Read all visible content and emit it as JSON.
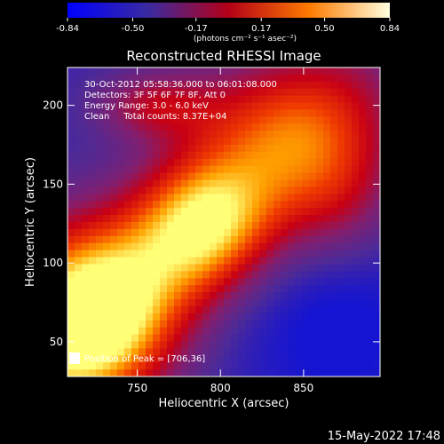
{
  "chart_data": {
    "type": "heatmap",
    "title": "Reconstructed RHESSI Image",
    "xlabel": "Heliocentric X (arcsec)",
    "ylabel": "Heliocentric Y (arcsec)",
    "x_ticks": [
      750,
      800,
      850
    ],
    "y_ticks": [
      50,
      100,
      150,
      200
    ],
    "xlim": [
      708,
      896
    ],
    "ylim": [
      28,
      224
    ],
    "colorbar": {
      "ticks": [
        "-0.84",
        "-0.50",
        "-0.17",
        "0.17",
        "0.50",
        "0.84"
      ],
      "range": [
        -0.84,
        0.84
      ],
      "unit_label": "(photons cm⁻² s⁻¹ asec⁻²)"
    },
    "annotations": [
      "30-Oct-2012 05:58:36.000 to 06:01:08.000",
      "Detectors: 3F 5F 6F 7F 8F, Att 0",
      "Energy Range: 3.0 - 6.0 keV",
      "Clean     Total counts: 8.37E+04"
    ],
    "peak_label": "Position of Peak = [706,36]",
    "peak": {
      "x": 706,
      "y": 36
    },
    "colors": {
      "low": "#0000ff",
      "mid_low": "#4b2b9a",
      "mid": "#c40000",
      "mid_high": "#ff6600",
      "high": "#ffff99"
    }
  },
  "footer": {
    "date": "15-May-2022 17:48"
  }
}
